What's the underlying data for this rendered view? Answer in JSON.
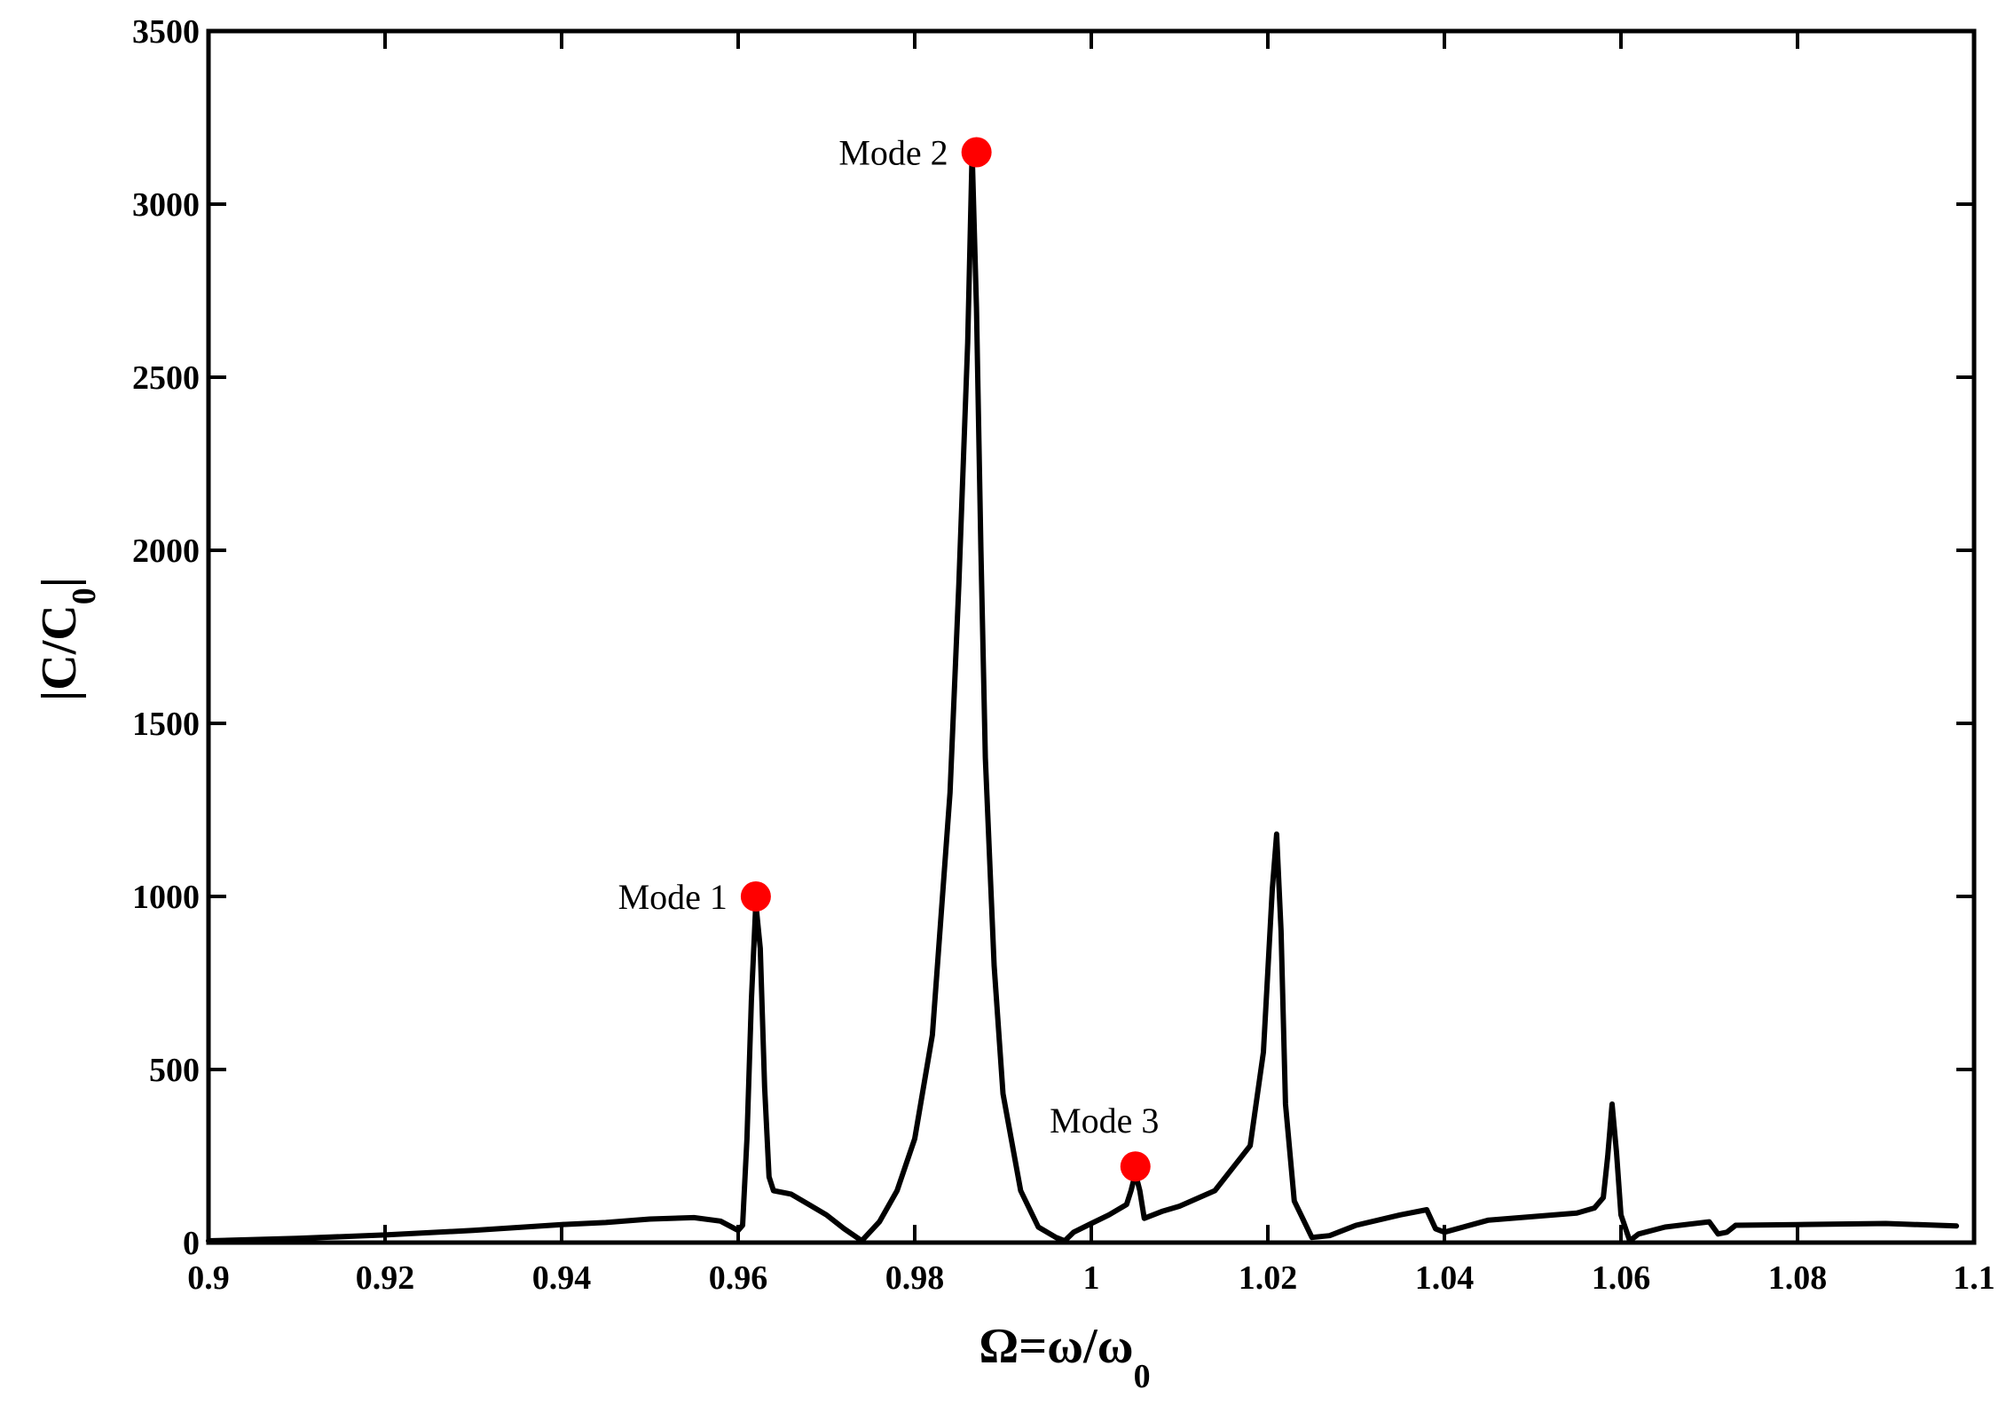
{
  "chart_data": {
    "type": "line",
    "xlabel": {
      "main": "Ω=ω/ω",
      "sub": "0"
    },
    "ylabel": {
      "main": "|C/C",
      "sub": "0",
      "end": "|"
    },
    "xlim": [
      0.9,
      1.1
    ],
    "ylim": [
      0,
      3500
    ],
    "xticks": [
      0.9,
      0.92,
      0.94,
      0.96,
      0.98,
      1.0,
      1.02,
      1.04,
      1.06,
      1.08,
      1.1
    ],
    "xtick_labels": [
      "0.9",
      "0.92",
      "0.94",
      "0.96",
      "0.98",
      "1",
      "1.02",
      "1.04",
      "1.06",
      "1.08",
      "1.1"
    ],
    "yticks": [
      0,
      500,
      1000,
      1500,
      2000,
      2500,
      3000,
      3500
    ],
    "ytick_labels": [
      "0",
      "500",
      "1000",
      "1500",
      "2000",
      "2500",
      "3000",
      "3500"
    ],
    "grid": false,
    "line_color": "#000000",
    "marker_color": "#ff0000",
    "series": [
      {
        "x": [
          0.9,
          0.91,
          0.92,
          0.93,
          0.94,
          0.945,
          0.95,
          0.955,
          0.958,
          0.96,
          0.9605,
          0.961,
          0.9615,
          0.962,
          0.9625,
          0.963,
          0.9635,
          0.964,
          0.966,
          0.968,
          0.97,
          0.972,
          0.974,
          0.976,
          0.978,
          0.98,
          0.982,
          0.984,
          0.985,
          0.986,
          0.9865,
          0.987,
          0.9875,
          0.988,
          0.989,
          0.99,
          0.992,
          0.994,
          0.996,
          0.997,
          0.998,
          1.0,
          1.002,
          1.004,
          1.0045,
          1.005,
          1.0055,
          1.006,
          1.008,
          1.01,
          1.014,
          1.018,
          1.0195,
          1.0205,
          1.021,
          1.0215,
          1.022,
          1.023,
          1.025,
          1.027,
          1.03,
          1.035,
          1.038,
          1.039,
          1.04,
          1.045,
          1.05,
          1.055,
          1.057,
          1.058,
          1.0585,
          1.059,
          1.0595,
          1.06,
          1.061,
          1.062,
          1.065,
          1.07,
          1.071,
          1.072,
          1.073,
          1.08,
          1.09,
          1.098
        ],
        "y": [
          5,
          12,
          22,
          35,
          52,
          58,
          68,
          72,
          62,
          35,
          50,
          300,
          700,
          980,
          850,
          450,
          190,
          150,
          140,
          110,
          80,
          40,
          5,
          60,
          150,
          300,
          600,
          1300,
          1900,
          2600,
          3150,
          2700,
          2000,
          1400,
          800,
          430,
          150,
          45,
          15,
          5,
          30,
          55,
          80,
          110,
          150,
          200,
          150,
          70,
          90,
          105,
          150,
          280,
          550,
          1020,
          1180,
          900,
          400,
          120,
          15,
          20,
          50,
          80,
          95,
          40,
          30,
          65,
          75,
          85,
          100,
          130,
          250,
          400,
          260,
          80,
          5,
          25,
          45,
          60,
          25,
          30,
          50,
          52,
          55,
          48
        ]
      }
    ],
    "annotations": [
      {
        "text": "Mode 1",
        "x": 0.962,
        "y": 1000
      },
      {
        "text": "Mode 2",
        "x": 0.987,
        "y": 3150
      },
      {
        "text": "Mode 3",
        "x": 1.005,
        "y": 220
      }
    ]
  }
}
